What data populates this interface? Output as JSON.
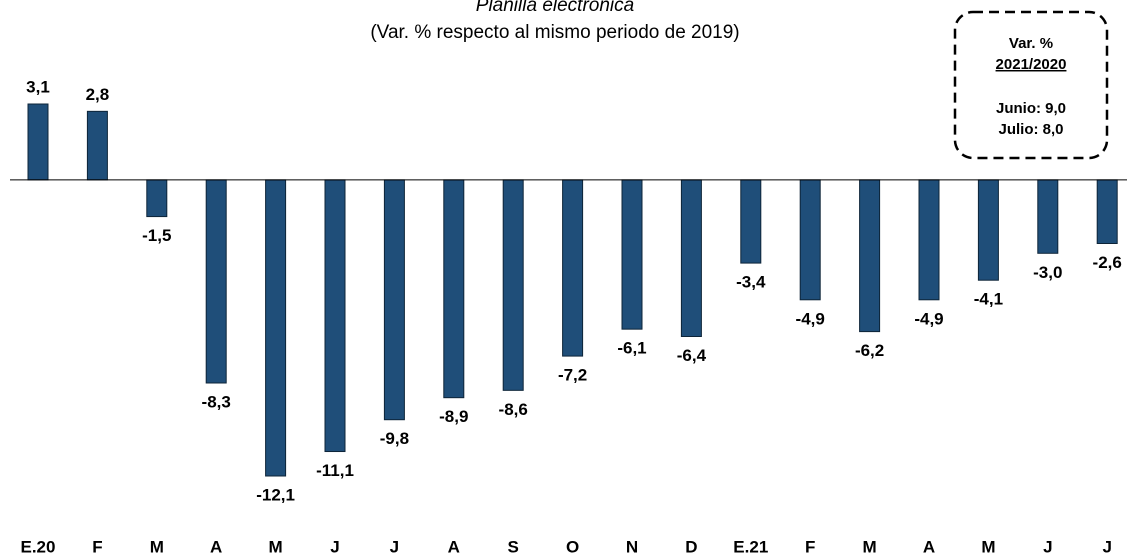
{
  "chart_data": {
    "type": "bar",
    "title": "Planilla electrónica",
    "subtitle": "(Var. % respecto al mismo periodo de 2019)",
    "categories": [
      "E.20",
      "F",
      "M",
      "A",
      "M",
      "J",
      "J",
      "A",
      "S",
      "O",
      "N",
      "D",
      "E.21",
      "F",
      "M",
      "A",
      "M",
      "J",
      "J"
    ],
    "values": [
      3.1,
      2.8,
      -1.5,
      -8.3,
      -12.1,
      -11.1,
      -9.8,
      -8.9,
      -8.6,
      -7.2,
      -6.1,
      -6.4,
      -3.4,
      -4.9,
      -6.2,
      -4.9,
      -4.1,
      -3.0,
      -2.6
    ],
    "value_labels": [
      "3,1",
      "2,8",
      "-1,5",
      "-8,3",
      "-12,1",
      "-11,1",
      "-9,8",
      "-8,9",
      "-8,6",
      "-7,2",
      "-6,1",
      "-6,4",
      "-3,4",
      "-4,9",
      "-6,2",
      "-4,9",
      "-4,1",
      "-3,0",
      "-2,6"
    ],
    "color": "#1f4e79",
    "annotation": {
      "heading": "Var. %",
      "period": "2021/2020",
      "lines": [
        "Junio: 9,0",
        "Julio: 8,0"
      ]
    }
  }
}
